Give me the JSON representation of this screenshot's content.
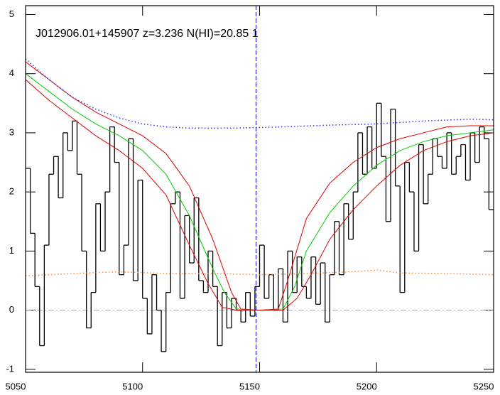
{
  "chart_data": {
    "type": "line",
    "title": "J012906.01+145907 z=3.236 N(HI)=20.85 1",
    "xlim": [
      5050,
      5250
    ],
    "ylim": [
      -1.05,
      5.15
    ],
    "xticks": [
      5050,
      5100,
      5150,
      5200,
      5250
    ],
    "yticks": [
      -1,
      0,
      1,
      2,
      3,
      4,
      5
    ],
    "vline": {
      "x": 5148.5,
      "color": "#0000cc"
    },
    "hline": {
      "y": 0,
      "color": "#aaaaaa"
    },
    "series": [
      {
        "kind": "step",
        "color": "#000000",
        "x": [
          5050,
          5052,
          5054,
          5056,
          5058,
          5060,
          5062,
          5064,
          5066,
          5068,
          5070,
          5072,
          5074,
          5076,
          5078,
          5080,
          5082,
          5084,
          5086,
          5088,
          5090,
          5092,
          5094,
          5096,
          5098,
          5100,
          5102,
          5104,
          5106,
          5108,
          5110,
          5112,
          5114,
          5116,
          5118,
          5120,
          5122,
          5124,
          5126,
          5128,
          5130,
          5132,
          5134,
          5136,
          5138,
          5140,
          5142,
          5144,
          5146,
          5148,
          5150,
          5152,
          5154,
          5156,
          5158,
          5160,
          5162,
          5164,
          5166,
          5168,
          5170,
          5172,
          5174,
          5176,
          5178,
          5180,
          5182,
          5184,
          5186,
          5188,
          5190,
          5192,
          5194,
          5196,
          5198,
          5200,
          5202,
          5204,
          5206,
          5208,
          5210,
          5212,
          5214,
          5216,
          5218,
          5220,
          5222,
          5224,
          5226,
          5228,
          5230,
          5232,
          5234,
          5236,
          5238,
          5240,
          5242,
          5244,
          5246,
          5248
        ],
        "values": [
          2.4,
          1.3,
          0.4,
          -0.6,
          1.1,
          2.3,
          2.6,
          1.9,
          3.0,
          2.7,
          3.2,
          2.3,
          1.0,
          -0.3,
          0.3,
          1.8,
          1.0,
          2.0,
          3.1,
          2.5,
          0.6,
          1.1,
          2.9,
          0.5,
          2.2,
          0.2,
          -0.4,
          0.6,
          0.0,
          -0.7,
          0.3,
          1.8,
          2.0,
          0.2,
          1.6,
          0.8,
          1.9,
          0.5,
          0.3,
          1.0,
          0.4,
          -0.6,
          0.3,
          -0.3,
          0.2,
          0.0,
          -0.2,
          0.3,
          -0.1,
          0.4,
          1.1,
          0.2,
          0.6,
          0.0,
          0.7,
          -0.2,
          1.0,
          0.3,
          0.9,
          0.4,
          0.2,
          0.9,
          0.1,
          0.8,
          -0.2,
          0.6,
          1.5,
          0.6,
          1.8,
          1.2,
          2.0,
          3.0,
          2.3,
          3.1,
          2.4,
          3.5,
          2.6,
          1.5,
          3.4,
          2.1,
          0.3,
          2.5,
          2.0,
          1.0,
          2.8,
          1.8,
          2.3,
          2.9,
          2.6,
          2.4,
          3.0,
          2.3,
          2.6,
          2.8,
          2.2,
          3.0,
          2.5,
          3.1,
          2.9,
          1.7
        ]
      },
      {
        "kind": "line",
        "color": "#00cc00",
        "x": [
          5050,
          5060,
          5070,
          5080,
          5090,
          5100,
          5110,
          5120,
          5130,
          5135,
          5140,
          5150,
          5160,
          5165,
          5170,
          5180,
          5190,
          5200,
          5210,
          5220,
          5230,
          5240,
          5250
        ],
        "values": [
          4.0,
          3.7,
          3.4,
          3.15,
          2.95,
          2.7,
          2.3,
          1.6,
          0.7,
          0.3,
          0.02,
          0.0,
          0.02,
          0.4,
          1.0,
          1.65,
          2.1,
          2.45,
          2.7,
          2.85,
          2.95,
          3.0,
          3.05
        ]
      },
      {
        "kind": "line",
        "color": "#dd0000",
        "x": [
          5050,
          5060,
          5070,
          5080,
          5090,
          5100,
          5110,
          5120,
          5130,
          5138,
          5142,
          5150,
          5158,
          5162,
          5170,
          5180,
          5190,
          5200,
          5210,
          5220,
          5230,
          5240,
          5250
        ],
        "values": [
          4.2,
          3.9,
          3.6,
          3.35,
          3.15,
          2.95,
          2.65,
          2.1,
          1.2,
          0.3,
          0.02,
          0.0,
          0.02,
          0.5,
          1.55,
          2.15,
          2.5,
          2.75,
          2.9,
          3.0,
          3.1,
          3.12,
          3.12
        ]
      },
      {
        "kind": "line",
        "color": "#dd0000",
        "x": [
          5050,
          5060,
          5070,
          5080,
          5090,
          5100,
          5110,
          5120,
          5128,
          5134,
          5140,
          5160,
          5166,
          5172,
          5180,
          5190,
          5200,
          5210,
          5220,
          5230,
          5240,
          5250
        ],
        "values": [
          3.9,
          3.55,
          3.25,
          2.95,
          2.7,
          2.4,
          1.95,
          1.1,
          0.45,
          0.05,
          0.0,
          0.0,
          0.2,
          0.6,
          1.2,
          1.7,
          2.1,
          2.45,
          2.7,
          2.85,
          2.95,
          3.0
        ]
      },
      {
        "kind": "line",
        "linestyle": "dotted",
        "color": "#3333ff",
        "x": [
          5050,
          5060,
          5070,
          5080,
          5090,
          5100,
          5110,
          5120,
          5140,
          5160,
          5180,
          5200,
          5220,
          5240,
          5250
        ],
        "values": [
          4.25,
          3.9,
          3.6,
          3.4,
          3.25,
          3.15,
          3.1,
          3.08,
          3.08,
          3.1,
          3.13,
          3.15,
          3.2,
          3.23,
          3.22
        ]
      },
      {
        "kind": "line",
        "linestyle": "dotted",
        "color": "#ff8833",
        "x": [
          5050,
          5070,
          5090,
          5110,
          5130,
          5150,
          5170,
          5190,
          5200,
          5210,
          5230,
          5250
        ],
        "values": [
          0.58,
          0.62,
          0.65,
          0.62,
          0.62,
          0.6,
          0.62,
          0.65,
          0.68,
          0.63,
          0.62,
          0.6
        ]
      }
    ]
  }
}
